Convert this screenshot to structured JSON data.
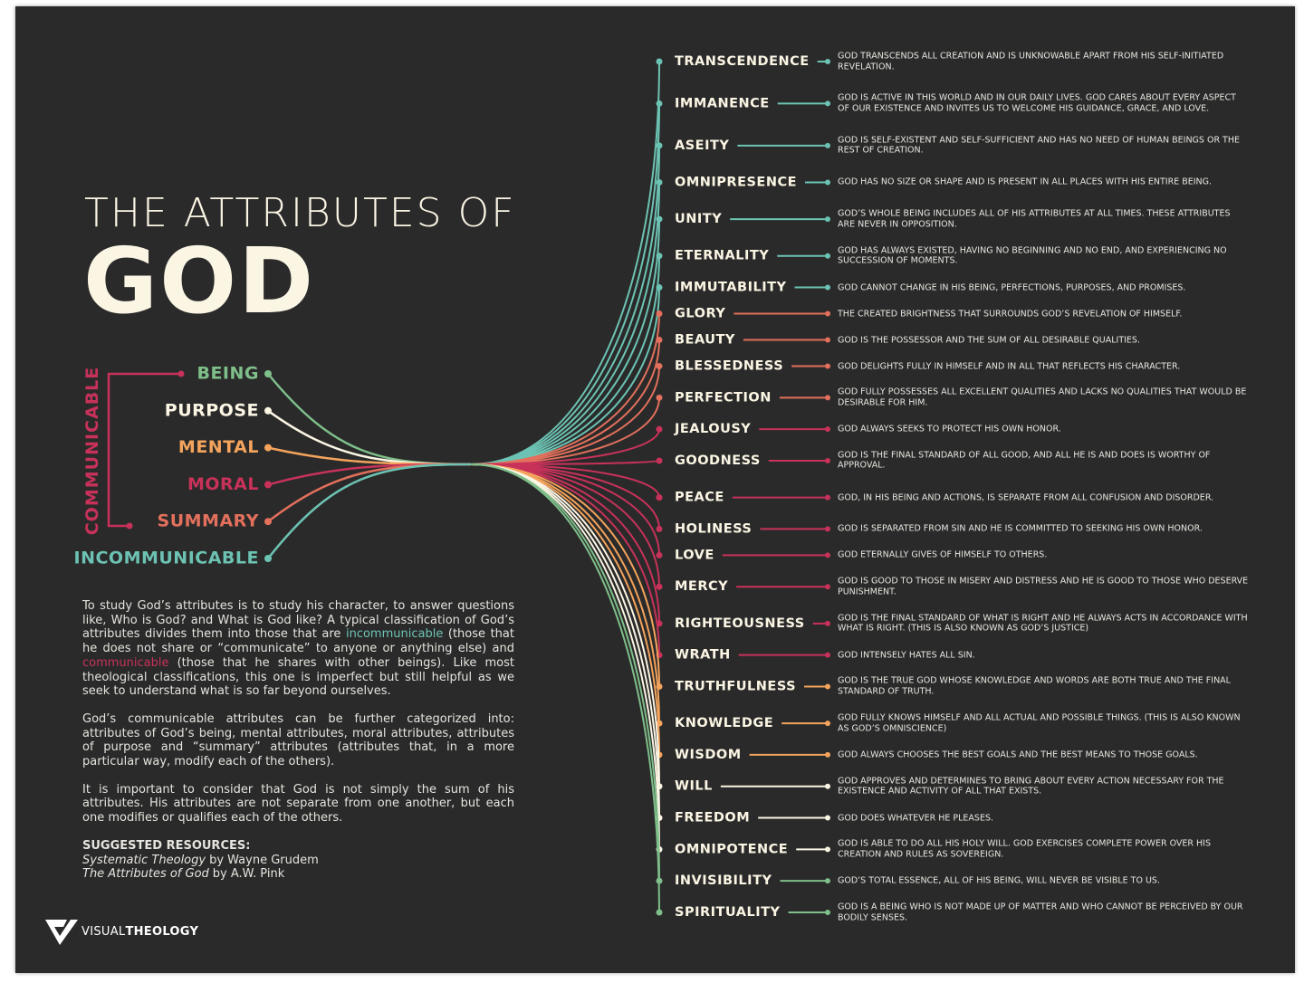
{
  "title": {
    "line1": "THE ATTRIBUTES OF",
    "line2": "GOD"
  },
  "bracket_label": "COMMUNICABLE",
  "bracket_color": "#c8325a",
  "categories": [
    {
      "label": "BEING",
      "color": "#7fbf8a",
      "attributes": [
        {
          "name": "INVISIBILITY",
          "description": "GOD’S TOTAL ESSENCE, ALL OF HIS BEING, WILL NEVER BE VISIBLE TO US."
        },
        {
          "name": "SPIRITUALITY",
          "description": "GOD IS A BEING WHO IS NOT MADE UP OF MATTER AND WHO CANNOT BE PERCEIVED BY OUR BODILY SENSES."
        }
      ]
    },
    {
      "label": "PURPOSE",
      "color": "#fbf5e4",
      "attributes": [
        {
          "name": "WILL",
          "description": "GOD APPROVES AND DETERMINES TO BRING ABOUT EVERY ACTION NECESSARY FOR THE EXISTENCE AND ACTIVITY OF ALL THAT EXISTS."
        },
        {
          "name": "FREEDOM",
          "description": "GOD DOES WHATEVER HE PLEASES."
        },
        {
          "name": "OMNIPOTENCE",
          "description": "GOD IS ABLE TO DO ALL HIS HOLY WILL. GOD EXERCISES COMPLETE POWER OVER HIS CREATION AND RULES AS SOVEREIGN."
        }
      ]
    },
    {
      "label": "MENTAL",
      "color": "#f4a45c",
      "attributes": [
        {
          "name": "TRUTHFULNESS",
          "description": "GOD IS THE TRUE GOD WHOSE KNOWLEDGE AND WORDS ARE BOTH TRUE AND THE FINAL STANDARD OF TRUTH."
        },
        {
          "name": "KNOWLEDGE",
          "description": "GOD FULLY KNOWS HIMSELF AND ALL ACTUAL AND POSSIBLE THINGS. (THIS IS ALSO KNOWN AS GOD’S OMNISCIENCE)"
        },
        {
          "name": "WISDOM",
          "description": "GOD ALWAYS CHOOSES THE BEST GOALS AND THE BEST MEANS TO THOSE GOALS."
        }
      ]
    },
    {
      "label": "MORAL",
      "color": "#c8325a",
      "attributes": [
        {
          "name": "JEALOUSY",
          "description": "GOD ALWAYS SEEKS TO PROTECT HIS OWN HONOR."
        },
        {
          "name": "GOODNESS",
          "description": "GOD IS THE FINAL STANDARD OF ALL GOOD, AND ALL HE IS AND DOES IS WORTHY OF APPROVAL."
        },
        {
          "name": "PEACE",
          "description": "GOD, IN HIS BEING AND ACTIONS, IS SEPARATE FROM ALL CONFUSION AND DISORDER."
        },
        {
          "name": "HOLINESS",
          "description": "GOD IS SEPARATED FROM SIN AND HE IS COMMITTED TO SEEKING HIS OWN HONOR."
        },
        {
          "name": "LOVE",
          "description": "GOD ETERNALLY GIVES OF HIMSELF TO OTHERS."
        },
        {
          "name": "MERCY",
          "description": "GOD IS GOOD TO THOSE IN MISERY AND DISTRESS AND HE IS GOOD TO THOSE WHO DESERVE PUNISHMENT."
        },
        {
          "name": "RIGHTEOUSNESS",
          "description": "GOD IS THE FINAL STANDARD OF WHAT IS RIGHT AND HE ALWAYS ACTS IN ACCORDANCE WITH WHAT IS RIGHT. (THIS IS ALSO KNOWN AS GOD’S JUSTICE)"
        },
        {
          "name": "WRATH",
          "description": "GOD INTENSELY HATES ALL SIN."
        }
      ]
    },
    {
      "label": "SUMMARY",
      "color": "#e2705c",
      "attributes": [
        {
          "name": "GLORY",
          "description": "THE CREATED BRIGHTNESS THAT SURROUNDS GOD’S REVELATION OF HIMSELF."
        },
        {
          "name": "BEAUTY",
          "description": "GOD IS THE POSSESSOR AND THE SUM OF ALL DESIRABLE QUALITIES."
        },
        {
          "name": "BLESSEDNESS",
          "description": "GOD DELIGHTS FULLY IN HIMSELF AND IN ALL THAT REFLECTS HIS CHARACTER."
        },
        {
          "name": "PERFECTION",
          "description": "GOD FULLY POSSESSES ALL EXCELLENT QUALITIES AND LACKS NO QUALITIES THAT WOULD BE DESIRABLE FOR HIM."
        }
      ]
    },
    {
      "label": "INCOMMUNICABLE",
      "color": "#6cc3b3",
      "attributes": [
        {
          "name": "TRANSCENDENCE",
          "description": "GOD TRANSCENDS ALL CREATION AND IS UNKNOWABLE APART FROM HIS SELF-INITIATED REVELATION."
        },
        {
          "name": "IMMANENCE",
          "description": "GOD IS ACTIVE IN THIS WORLD AND IN OUR DAILY LIVES. GOD CARES ABOUT EVERY ASPECT OF OUR EXISTENCE AND INVITES US TO WELCOME HIS GUIDANCE, GRACE, AND LOVE."
        },
        {
          "name": "ASEITY",
          "description": "GOD IS SELF-EXISTENT AND SELF-SUFFICIENT AND HAS NO NEED OF HUMAN BEINGS OR THE REST OF CREATION."
        },
        {
          "name": "OMNIPRESENCE",
          "description": "GOD HAS NO SIZE OR SHAPE AND IS PRESENT IN ALL PLACES WITH HIS ENTIRE BEING."
        },
        {
          "name": "UNITY",
          "description": "GOD’S WHOLE BEING INCLUDES ALL OF HIS ATTRIBUTES AT ALL TIMES. THESE ATTRIBUTES ARE NEVER IN OPPOSITION."
        },
        {
          "name": "ETERNALITY",
          "description": "GOD HAS ALWAYS EXISTED, HAVING NO BEGINNING AND NO END, AND EXPERIENCING NO SUCCESSION OF MOMENTS."
        },
        {
          "name": "IMMUTABILITY",
          "description": "GOD CANNOT CHANGE IN HIS BEING, PERFECTIONS, PURPOSES, AND PROMISES."
        }
      ]
    }
  ],
  "intro": {
    "paragraphs": [
      [
        {
          "text": "To study God’s attributes is to study his character, to answer questions like, Who is God? and What is God like? A typical classification of God’s attributes divides them into those that are "
        },
        {
          "text": "incommunicable",
          "color": "#6cc3b3"
        },
        {
          "text": " (those that he does not share or “communicate” to anyone or anything else) and "
        },
        {
          "text": "communicable",
          "color": "#c8325a"
        },
        {
          "text": " (those that he shares with other beings). Like most theological classifications, this one is imperfect but still helpful as we seek to understand what is so far beyond ourselves."
        }
      ],
      [
        {
          "text": "God’s communicable attributes can be further categorized into: attributes of God’s being, mental attributes, moral attributes, attributes of purpose and “summary” attributes (attributes that, in a more particular way, modify each of the others)."
        }
      ],
      [
        {
          "text": "It is important to consider that God is not simply the sum of his attributes. His attributes are not separate from one another, but each one modifies or qualifies each of the others."
        }
      ]
    ]
  },
  "resources": {
    "heading": "SUGGESTED RESOURCES:",
    "items": [
      {
        "title": "Systematic Theology",
        "author": "by Wayne Grudem"
      },
      {
        "title": "The Attributes of God",
        "author": "by A.W. Pink"
      }
    ]
  },
  "logo": {
    "part1": "VISUAL",
    "part2": "THEOLOGY"
  }
}
